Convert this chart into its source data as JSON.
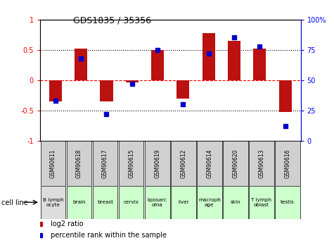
{
  "title": "GDS1835 / 35356",
  "samples": [
    "GSM90611",
    "GSM90618",
    "GSM90617",
    "GSM90615",
    "GSM90619",
    "GSM90612",
    "GSM90614",
    "GSM90620",
    "GSM90613",
    "GSM90616"
  ],
  "cell_lines": [
    "B lymph\nocyte",
    "brain",
    "breast",
    "cervix",
    "liposarc\noma",
    "liver",
    "macroph\nage",
    "skin",
    "T lymph\noblast",
    "testis"
  ],
  "cell_line_colors": [
    "#dddddd",
    "#ccffcc",
    "#ccffcc",
    "#ccffcc",
    "#ccffcc",
    "#ccffcc",
    "#ccffcc",
    "#ccffcc",
    "#ccffcc",
    "#ccffcc"
  ],
  "log2_ratio": [
    -0.35,
    0.52,
    -0.35,
    -0.04,
    0.5,
    -0.3,
    0.78,
    0.65,
    0.52,
    -0.52
  ],
  "percentile_rank": [
    33,
    68,
    22,
    47,
    75,
    30,
    72,
    85,
    78,
    12
  ],
  "bar_color": "#bb1111",
  "dot_color": "#0000cc",
  "ylim": [
    -1,
    1
  ],
  "y2lim": [
    0,
    100
  ],
  "yticks": [
    -1,
    -0.5,
    0,
    0.5,
    1
  ],
  "ytick_labels": [
    "-1",
    "-0.5",
    "0",
    "0.5",
    "1"
  ],
  "y2ticks": [
    0,
    25,
    50,
    75,
    100
  ],
  "y2ticklabels": [
    "0",
    "25",
    "50",
    "75",
    "100%"
  ],
  "legend_red": "log2 ratio",
  "legend_blue": "percentile rank within the sample",
  "xlabel_label": "cell line",
  "bar_width": 0.5
}
